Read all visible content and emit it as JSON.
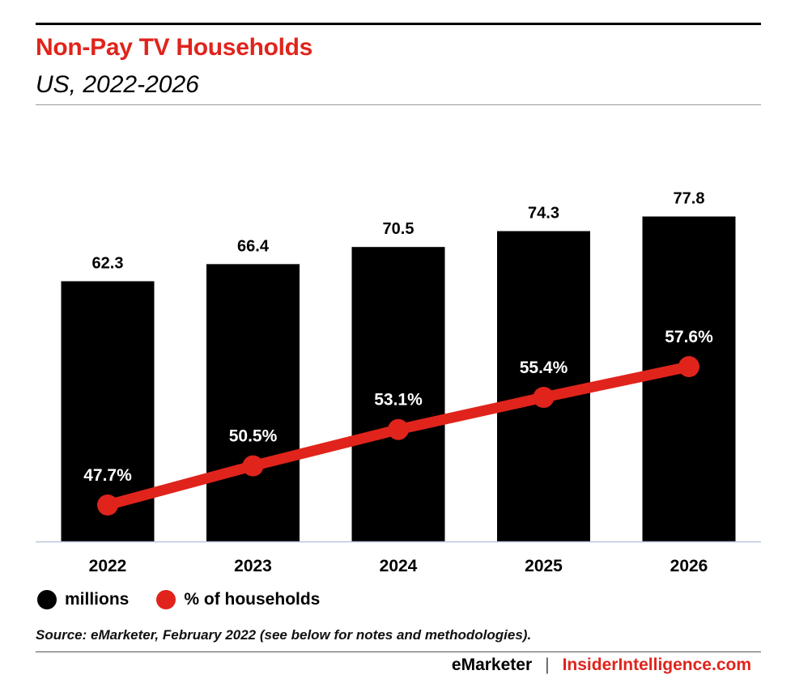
{
  "header": {
    "title": "Non-Pay TV Households",
    "subtitle": "US, 2022-2026"
  },
  "legend": {
    "items": [
      {
        "label": "millions",
        "color": "#000000"
      },
      {
        "label": "% of households",
        "color": "#e0241c"
      }
    ]
  },
  "source": "Source: eMarketer, February 2022 (see below for notes and methodologies).",
  "footer": {
    "brand1": "eMarketer",
    "separator": "|",
    "brand2": "InsiderIntelligence.com"
  },
  "colors": {
    "bar": "#000000",
    "line": "#e0241c",
    "axis": "#b9c6db"
  },
  "chart_data": {
    "type": "bar",
    "categories": [
      "2022",
      "2023",
      "2024",
      "2025",
      "2026"
    ],
    "series": [
      {
        "name": "millions",
        "type": "bar",
        "values": [
          62.3,
          66.4,
          70.5,
          74.3,
          77.8
        ],
        "labels": [
          "62.3",
          "66.4",
          "70.5",
          "74.3",
          "77.8"
        ]
      },
      {
        "name": "% of households",
        "type": "line",
        "values": [
          47.7,
          50.5,
          53.1,
          55.4,
          57.6
        ],
        "labels": [
          "47.7%",
          "50.5%",
          "53.1%",
          "55.4%",
          "57.6%"
        ]
      }
    ],
    "title": "Non-Pay TV Households",
    "subtitle": "US, 2022-2026",
    "xlabel": "",
    "ylabel": "",
    "grid": false,
    "legend_position": "bottom-left"
  }
}
